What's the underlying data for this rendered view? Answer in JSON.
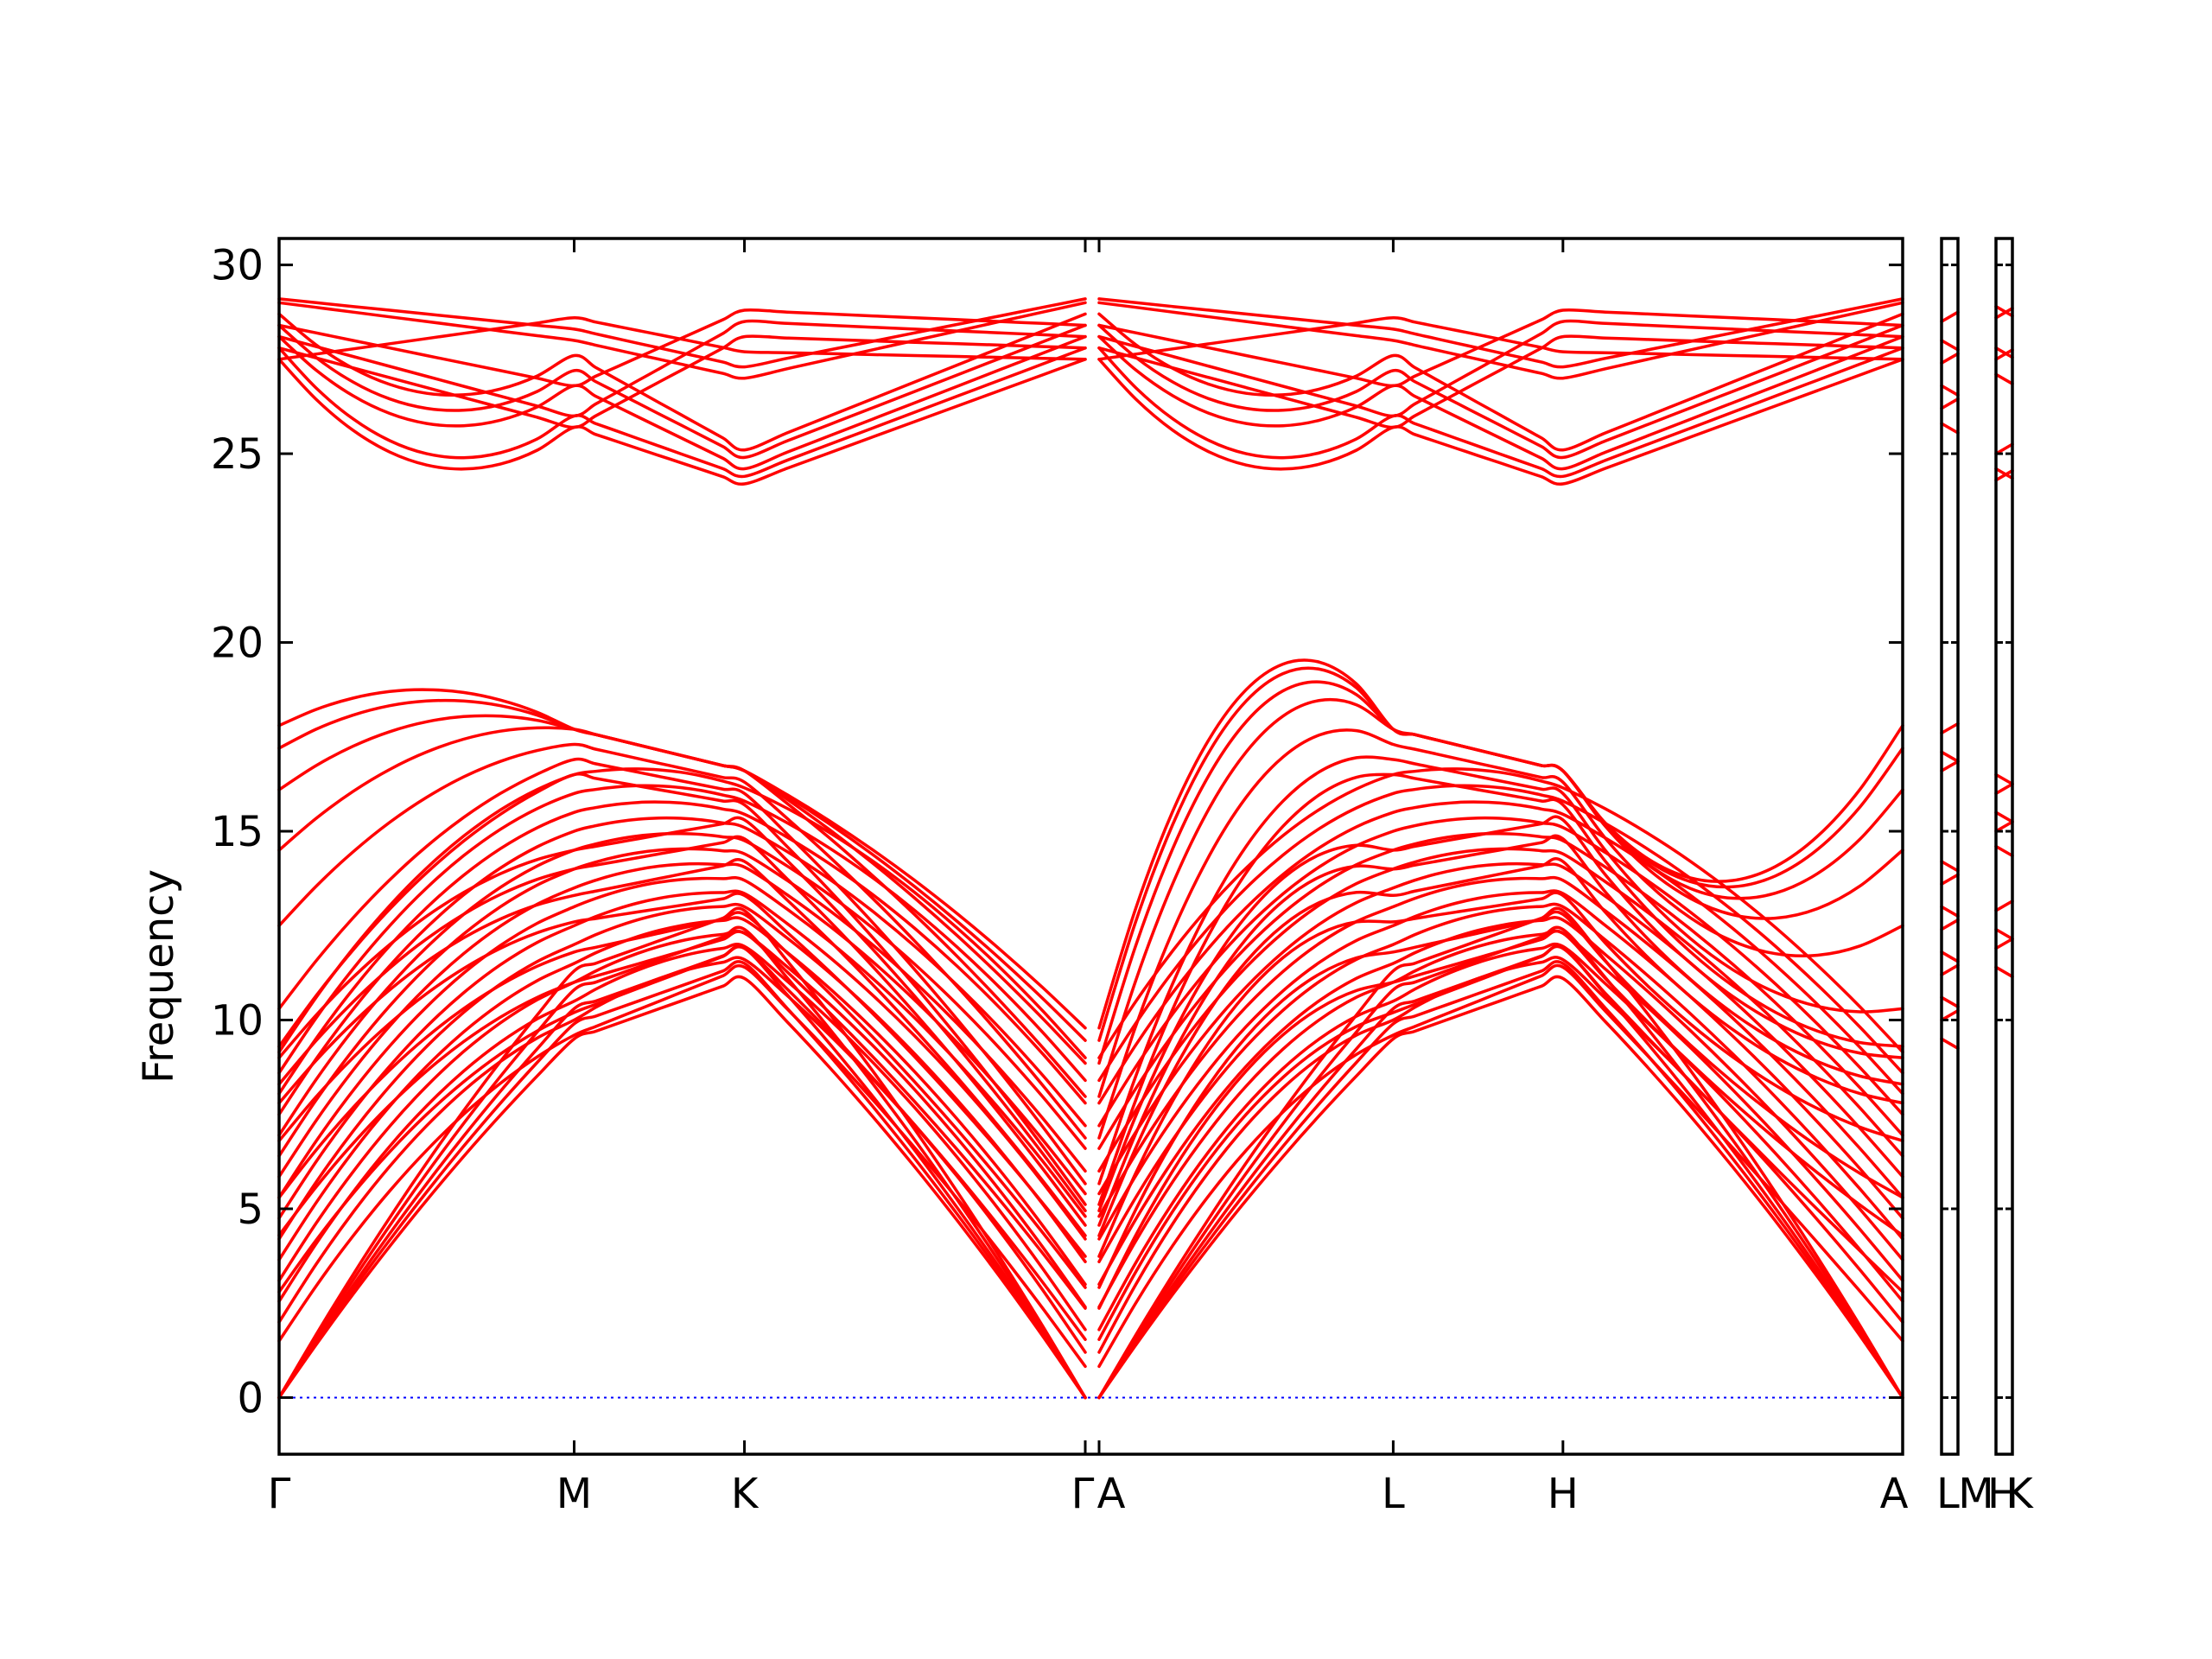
{
  "chart_data": {
    "type": "line",
    "title": "",
    "xlabel": "",
    "ylabel": "Frequency",
    "ylim": [
      -1.5,
      30.7
    ],
    "yticks": [
      0,
      5,
      10,
      15,
      20,
      25,
      30
    ],
    "grid": false,
    "legend": "none",
    "colors": {
      "bands": "#ff0000",
      "zero_line": "#0000ff",
      "frame": "#000000"
    },
    "path_segments": [
      {
        "labels": [
          "Γ",
          "M",
          "K",
          "Γ"
        ],
        "positions": [
          0,
          1,
          1.577,
          2.732
        ]
      },
      {
        "labels": [
          "A",
          "L",
          "H",
          "A"
        ],
        "positions": [
          0,
          1,
          1.577,
          2.732
        ]
      }
    ],
    "bottom_tick_labels": [
      "Γ",
      "M",
      "K",
      "Γ",
      "A",
      "L",
      "H",
      "A",
      "L",
      "M",
      "H",
      "K"
    ],
    "band_groups": {
      "acoustic_max_at_zone_boundary": [
        9.5,
        9.9,
        10.3,
        10.8,
        11.3
      ],
      "low_optical_gamma_start": [
        1.5,
        2.8,
        4.3,
        5.3,
        6.8,
        7.8,
        8.3,
        9.0,
        9.3,
        10.3,
        12.5,
        14.5,
        16.1,
        17.2,
        17.8
      ],
      "low_optical_M": [
        9.6,
        10.2,
        11.0,
        11.8,
        12.6,
        13.3,
        14.0,
        14.5,
        16.5,
        16.9,
        17.3,
        17.7
      ],
      "low_optical_K": [
        11.4,
        11.9,
        12.3,
        12.8,
        13.3,
        14.2,
        14.8,
        15.3,
        15.7,
        16.0,
        16.3,
        16.6
      ],
      "high_optical_gamma": [
        27.5,
        27.8,
        28.1,
        28.4,
        28.7,
        29.0,
        29.1
      ],
      "high_optical_M": [
        25.7,
        26.0,
        26.8,
        27.2,
        27.6,
        28.0,
        28.3,
        28.6
      ],
      "high_optical_K": [
        24.2,
        24.4,
        24.6,
        24.9,
        25.1,
        27.0,
        27.3,
        27.7,
        28.1,
        28.5,
        28.8
      ]
    },
    "side_panel_1_bands": [
      9.5,
      10.0,
      10.6,
      11.2,
      11.8,
      12.4,
      13.0,
      13.6,
      14.2,
      16.6,
      17.1,
      17.6,
      25.8,
      26.2,
      26.8,
      27.4,
      28.0,
      28.5
    ],
    "side_panel_2_bands": [
      11.4,
      11.9,
      12.4,
      12.9,
      14.6,
      15.0,
      15.5,
      16.0,
      16.5,
      24.3,
      24.6,
      25.0,
      27.1,
      27.5,
      27.8,
      28.6,
      28.9
    ]
  }
}
